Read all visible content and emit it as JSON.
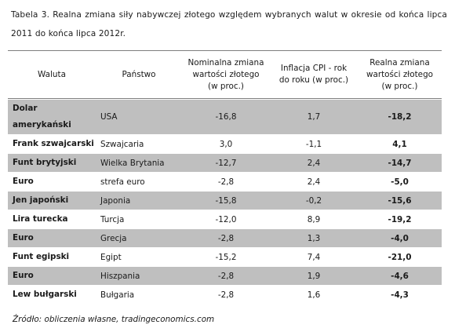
{
  "caption": "Tabela 3. Realna zmiana siły nabywczej złotego względem wybranych walut w okresie od końca lipca 2011 do końca lipca 2012r.",
  "headers": {
    "currency": "Waluta",
    "country": "Państwo",
    "nominal": "Nominalna zmiana wartości złotego (w proc.)",
    "inflation": "Inflacja CPI - rok do roku (w proc.)",
    "real": "Realna zmiana wartości złotego (w proc.)"
  },
  "rows": [
    {
      "currency": "Dolar amerykański",
      "country": "USA",
      "nominal": "-16,8",
      "inflation": "1,7",
      "real": "-18,2"
    },
    {
      "currency": "Frank szwajcarski",
      "country": "Szwajcaria",
      "nominal": "3,0",
      "inflation": "-1,1",
      "real": "4,1"
    },
    {
      "currency": "Funt brytyjski",
      "country": "Wielka Brytania",
      "nominal": "-12,7",
      "inflation": "2,4",
      "real": "-14,7"
    },
    {
      "currency": "Euro",
      "country": "strefa euro",
      "nominal": "-2,8",
      "inflation": "2,4",
      "real": "-5,0"
    },
    {
      "currency": "Jen japoński",
      "country": "Japonia",
      "nominal": "-15,8",
      "inflation": "-0,2",
      "real": "-15,6"
    },
    {
      "currency": "Lira turecka",
      "country": "Turcja",
      "nominal": "-12,0",
      "inflation": "8,9",
      "real": "-19,2"
    },
    {
      "currency": "Euro",
      "country": "Grecja",
      "nominal": "-2,8",
      "inflation": "1,3",
      "real": "-4,0"
    },
    {
      "currency": "Funt egipski",
      "country": "Egipt",
      "nominal": "-15,2",
      "inflation": "7,4",
      "real": "-21,0"
    },
    {
      "currency": "Euro",
      "country": "Hiszpania",
      "nominal": "-2,8",
      "inflation": "1,9",
      "real": "-4,6"
    },
    {
      "currency": "Lew bułgarski",
      "country": "Bułgaria",
      "nominal": "-2,8",
      "inflation": "1,6",
      "real": "-4,3"
    }
  ],
  "source": "Źródło: obliczenia własne, tradingeconomics.com"
}
